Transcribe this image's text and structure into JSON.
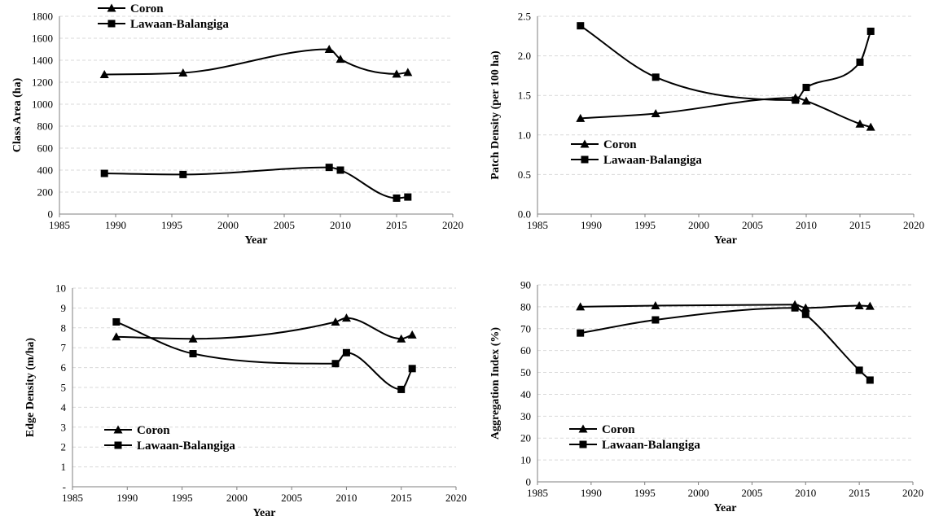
{
  "chart_data": [
    {
      "type": "line",
      "xlabel": "Year",
      "ylabel": "Class Area (ha)",
      "xlim": [
        1985,
        2020
      ],
      "xticks": [
        "1985",
        "1990",
        "1995",
        "2000",
        "2005",
        "2010",
        "2015",
        "2020"
      ],
      "ylim": [
        0,
        1800
      ],
      "yticks": [
        "0",
        "200",
        "400",
        "600",
        "800",
        "1000",
        "1200",
        "1400",
        "1600",
        "1800"
      ],
      "grid": true,
      "legend_position": "top-left",
      "series": [
        {
          "name": "Coron",
          "marker": "triangle",
          "x": [
            1989,
            1996,
            2009,
            2010,
            2015,
            2016
          ],
          "y": [
            1270,
            1285,
            1500,
            1410,
            1275,
            1290
          ]
        },
        {
          "name": "Lawaan-Balangiga",
          "marker": "square",
          "x": [
            1989,
            1996,
            2009,
            2010,
            2015,
            2016
          ],
          "y": [
            370,
            360,
            425,
            400,
            145,
            155
          ]
        }
      ]
    },
    {
      "type": "line",
      "xlabel": "Year",
      "ylabel": "Patch Density (per 100 ha)",
      "xlim": [
        1985,
        2020
      ],
      "xticks": [
        "1985",
        "1990",
        "1995",
        "2000",
        "2005",
        "2010",
        "2015",
        "2020"
      ],
      "ylim": [
        0,
        2.5
      ],
      "yticks": [
        "0.0",
        "0.5",
        "1.0",
        "1.5",
        "2.0",
        "2.5"
      ],
      "grid": true,
      "legend_position": "middle-left",
      "series": [
        {
          "name": "Coron",
          "marker": "triangle",
          "x": [
            1989,
            1996,
            2009,
            2010,
            2015,
            2016
          ],
          "y": [
            1.21,
            1.27,
            1.47,
            1.43,
            1.14,
            1.1
          ]
        },
        {
          "name": "Lawaan-Balangiga",
          "marker": "square",
          "x": [
            1989,
            1996,
            2009,
            2010,
            2015,
            2016
          ],
          "y": [
            2.38,
            1.73,
            1.44,
            1.6,
            1.92,
            2.31
          ]
        }
      ]
    },
    {
      "type": "line",
      "xlabel": "Year",
      "ylabel": "Edge Density (m/ha)",
      "xlim": [
        1985,
        2020
      ],
      "xticks": [
        "1985",
        "1990",
        "1995",
        "2000",
        "2005",
        "2010",
        "2015",
        "2020"
      ],
      "ylim": [
        0,
        10
      ],
      "yticks": [
        "-",
        "1",
        "2",
        "3",
        "4",
        "5",
        "6",
        "7",
        "8",
        "9",
        "10"
      ],
      "grid": true,
      "legend_position": "bottom-left",
      "series": [
        {
          "name": "Coron",
          "marker": "triangle",
          "x": [
            1989,
            1996,
            2009,
            2010,
            2015,
            2016
          ],
          "y": [
            7.55,
            7.45,
            8.3,
            8.5,
            7.45,
            7.65
          ]
        },
        {
          "name": "Lawaan-Balangiga",
          "marker": "square",
          "x": [
            1989,
            1996,
            2009,
            2010,
            2015,
            2016
          ],
          "y": [
            8.3,
            6.7,
            6.2,
            6.75,
            4.9,
            5.95
          ]
        }
      ]
    },
    {
      "type": "line",
      "xlabel": "Year",
      "ylabel": "Aggregation Index (%)",
      "xlim": [
        1985,
        2020
      ],
      "xticks": [
        "1985",
        "1990",
        "1995",
        "2000",
        "2005",
        "2010",
        "2015",
        "2020"
      ],
      "ylim": [
        0,
        90
      ],
      "yticks": [
        "0",
        "10",
        "20",
        "30",
        "40",
        "50",
        "60",
        "70",
        "80",
        "90"
      ],
      "grid": true,
      "legend_position": "bottom-left",
      "series": [
        {
          "name": "Coron",
          "marker": "triangle",
          "x": [
            1989,
            1996,
            2009,
            2010,
            2015,
            2016
          ],
          "y": [
            80,
            80.5,
            81,
            79.5,
            80.5,
            80.3
          ]
        },
        {
          "name": "Lawaan-Balangiga",
          "marker": "square",
          "x": [
            1989,
            1996,
            2009,
            2010,
            2015,
            2016
          ],
          "y": [
            68,
            74,
            79.5,
            76.5,
            51,
            46.5
          ]
        }
      ]
    }
  ]
}
